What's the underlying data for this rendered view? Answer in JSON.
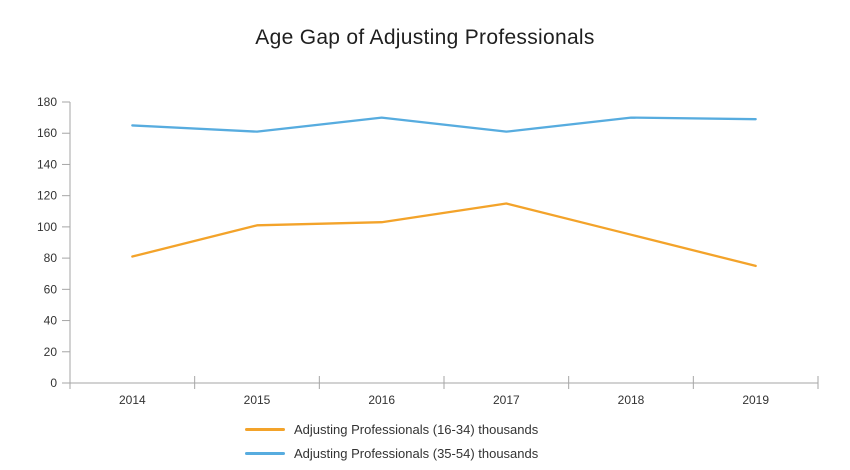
{
  "chart_data": {
    "type": "line",
    "title": "Age Gap of Adjusting Professionals",
    "categories": [
      "2014",
      "2015",
      "2016",
      "2017",
      "2018",
      "2019"
    ],
    "series": [
      {
        "name": "Adjusting Professionals (16-34) thousands",
        "color": "#F3A32A",
        "values": [
          81,
          101,
          103,
          115,
          95,
          75
        ]
      },
      {
        "name": "Adjusting Professionals (35-54) thousands",
        "color": "#57ACDF",
        "values": [
          165,
          161,
          170,
          161,
          170,
          169
        ]
      }
    ],
    "xlabel": "",
    "ylabel": "",
    "ylim": [
      0,
      180
    ],
    "y_ticks": [
      0,
      20,
      40,
      60,
      80,
      100,
      120,
      140,
      160,
      180
    ],
    "grid": false,
    "legend_position": "bottom",
    "axis_color": "#A6A6A6",
    "label_color": "#333333"
  }
}
